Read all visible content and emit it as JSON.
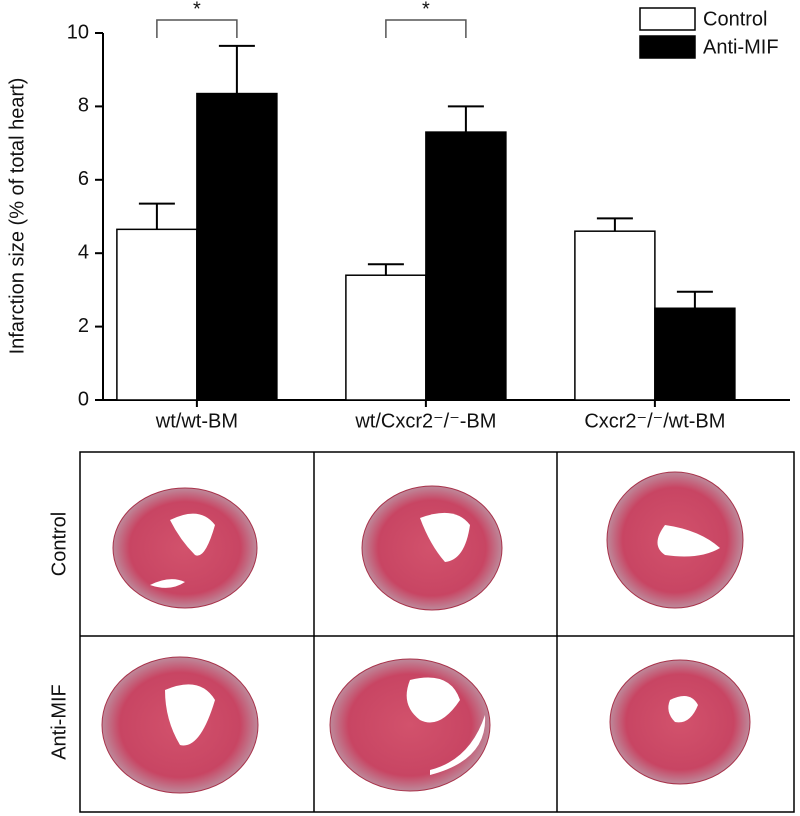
{
  "chart_data": {
    "type": "bar",
    "y_label": "Infarction size (% of total heart)",
    "categories": [
      "wt/wt-BM",
      "wt/Cxcr2⁻/⁻-BM",
      "Cxcr2⁻/⁻/wt-BM"
    ],
    "series": [
      {
        "name": "Control",
        "color": "#ffffff",
        "values": [
          4.65,
          3.4,
          4.6
        ],
        "errors": [
          0.7,
          0.3,
          0.35
        ]
      },
      {
        "name": "Anti-MIF",
        "color": "#000000",
        "values": [
          8.35,
          7.3,
          2.5
        ],
        "errors": [
          1.3,
          0.7,
          0.45
        ]
      }
    ],
    "significance": [
      "*",
      "*",
      null
    ],
    "ylim": [
      0,
      10
    ],
    "yticks": [
      0,
      2,
      4,
      6,
      8,
      10
    ],
    "grid": false,
    "legend": "top-right"
  },
  "image_panel": {
    "rows": [
      "Control",
      "Anti-MIF"
    ]
  }
}
